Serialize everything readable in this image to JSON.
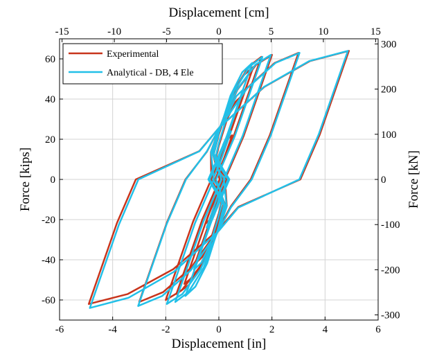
{
  "chart_data": {
    "type": "line",
    "title": "",
    "xlabel_bottom": "Displacement [in]",
    "xlabel_top": "Displacement [cm]",
    "ylabel_left": "Force [kips]",
    "ylabel_right": "Force [kN]",
    "xlim": [
      -6,
      6
    ],
    "ylim": [
      -70,
      70
    ],
    "xlim_top": [
      -15.24,
      15.24
    ],
    "ylim_right": [
      -311.4,
      311.4
    ],
    "x_ticks": [
      -6,
      -4,
      -2,
      0,
      2,
      4,
      6
    ],
    "y_ticks": [
      -60,
      -40,
      -20,
      0,
      20,
      40,
      60
    ],
    "x_top_ticks": [
      -15,
      -10,
      -5,
      0,
      5,
      10,
      15
    ],
    "y_right_ticks": [
      -300,
      -200,
      -100,
      0,
      100,
      200,
      300
    ],
    "grid": true,
    "legend_position": "top-left",
    "series": [
      {
        "name": "Experimental",
        "color": "#c8341c",
        "loops": [
          {
            "peak": 0.5,
            "fp": 22,
            "fn": -22
          },
          {
            "peak": 0.9,
            "fp": 42,
            "fn": -42
          },
          {
            "peak": 1.3,
            "fp": 56,
            "fn": -52
          },
          {
            "peak": 1.6,
            "fp": 61,
            "fn": -57
          },
          {
            "peak": 2.0,
            "fp": 62,
            "fn": -60
          },
          {
            "peak": 3.0,
            "fp": 63,
            "fn": -61
          },
          {
            "peak": 4.9,
            "fp": 64,
            "fn": -62
          }
        ]
      },
      {
        "name": "Analytical - DB, 4 Ele",
        "color": "#22c0e8",
        "loops": [
          {
            "peak": 0.5,
            "fp": 24,
            "fn": -24
          },
          {
            "peak": 0.9,
            "fp": 45,
            "fn": -45
          },
          {
            "peak": 1.3,
            "fp": 58,
            "fn": -58
          },
          {
            "peak": 1.6,
            "fp": 61,
            "fn": -61
          },
          {
            "peak": 2.0,
            "fp": 62,
            "fn": -62
          },
          {
            "peak": 3.0,
            "fp": 63,
            "fn": -63
          },
          {
            "peak": 4.9,
            "fp": 64,
            "fn": -64
          }
        ]
      }
    ]
  }
}
